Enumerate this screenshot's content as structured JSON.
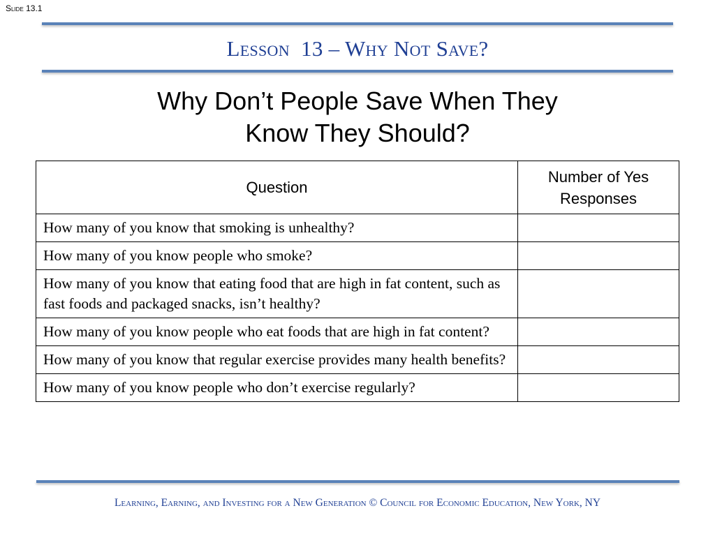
{
  "slide_number": "Slide 13.1",
  "lesson_title": "Lesson  13 – Why Not Save?",
  "subtitle": {
    "line1": "Why Don’t People Save When They",
    "line2": "Know They Should?"
  },
  "table": {
    "headers": {
      "question": "Question",
      "responses": "Number of Yes Responses"
    },
    "rows": [
      {
        "question": "How many of you know that smoking is unhealthy?",
        "responses": ""
      },
      {
        "question": "How many of you know people who smoke?",
        "responses": ""
      },
      {
        "question": "How many of you know that eating food that are high in fat content, such as fast foods and packaged snacks, isn’t healthy?",
        "responses": ""
      },
      {
        "question": "How many of you know people who eat foods that are high in fat content?",
        "responses": ""
      },
      {
        "question": "How many of you know that regular exercise provides many health benefits?",
        "responses": ""
      },
      {
        "question": "How many of you know people who don’t exercise regularly?",
        "responses": ""
      }
    ]
  },
  "footer": "Learning, Earning, and Investing for a New Generation © Council for Economic Education, New York, NY",
  "colors": {
    "title": "#1f3f94",
    "rule": "#5a82b8"
  }
}
